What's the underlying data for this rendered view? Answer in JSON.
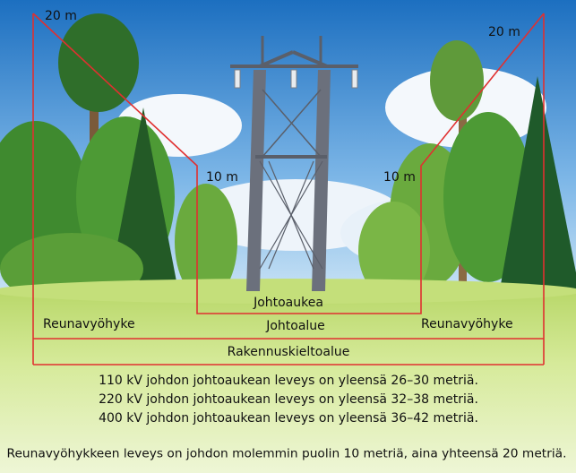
{
  "labels": {
    "top_left": "20 m",
    "top_right": "20 m",
    "mid_left": "10 m",
    "mid_right": "10 m",
    "johtoaukea": "Johtoaukea",
    "reunavyohyke_left": "Reunavyöhyke",
    "johtoalue": "Johtoalue",
    "reunavyohyke_right": "Reunavyöhyke",
    "rakennuskieltoalue": "Rakennuskieltoalue"
  },
  "notes": [
    "110 kV johdon johtoaukean leveys on yleensä 26–30 metriä.",
    "220 kV johdon johtoaukean leveys on yleensä 32–38 metriä.",
    "400 kV johdon johtoaukean leveys on yleensä 36–42 metriä."
  ],
  "footer": "Reunavyöhykkeen leveys on johdon molemmin puolin 10 metriä, aina yhteensä 20 metriä."
}
